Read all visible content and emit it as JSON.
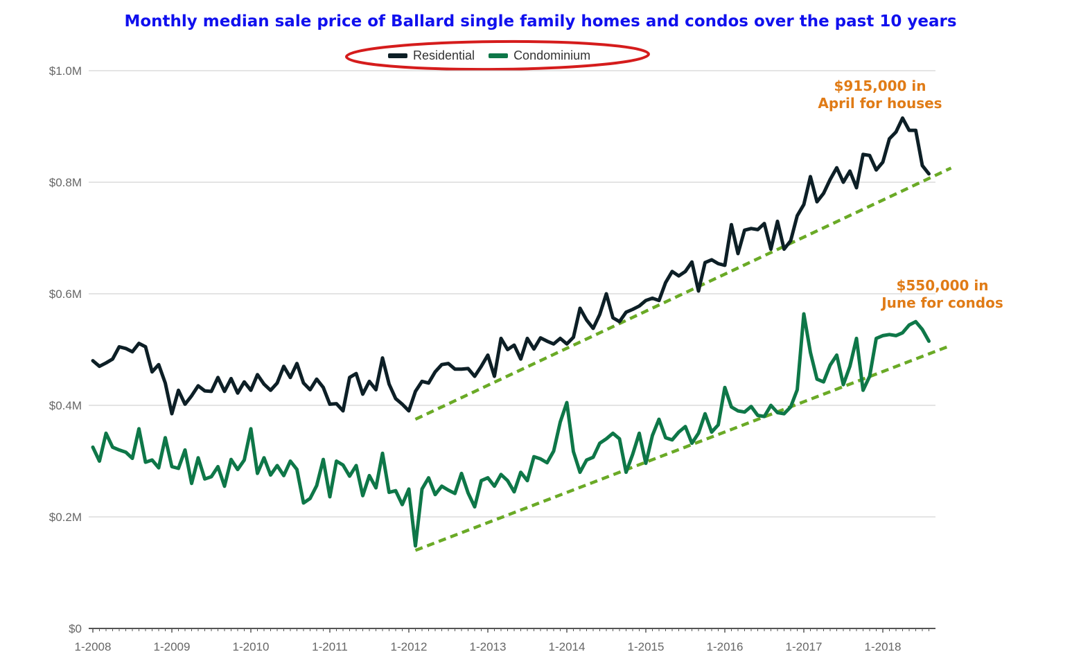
{
  "title": "Monthly median sale price of Ballard single family homes and condos over the past 10 years",
  "legend": {
    "items": [
      {
        "label": "Residential",
        "color": "#0d1f26"
      },
      {
        "label": "Condominium",
        "color": "#0e7748"
      }
    ],
    "highlight_color": "#d51c1c"
  },
  "annotations": {
    "houses": {
      "line1": "$915,000 in",
      "line2": "April for houses",
      "color": "#e07b16"
    },
    "condos": {
      "line1": "$550,000 in",
      "line2": "June for condos",
      "color": "#e07b16"
    }
  },
  "chart_data": {
    "type": "line",
    "title": "Monthly median sale price of Ballard single family homes and condos over the past 10 years",
    "x_start": "1-2008",
    "x_interval": "month",
    "xlabel": "",
    "ylabel": "",
    "x_ticks": [
      "1-2008",
      "1-2009",
      "1-2010",
      "1-2011",
      "1-2012",
      "1-2013",
      "1-2014",
      "1-2015",
      "1-2016",
      "1-2017",
      "1-2018"
    ],
    "y_ticks": [
      "$0",
      "$0.2M",
      "$0.4M",
      "$0.6M",
      "$0.8M",
      "$1.0M"
    ],
    "ylim": [
      0,
      1000000
    ],
    "grid": true,
    "legend_position": "top-center",
    "series": [
      {
        "name": "Residential",
        "color": "#0d1f26",
        "values": [
          480000,
          470000,
          476000,
          483000,
          505000,
          502000,
          496000,
          511000,
          505000,
          460000,
          473000,
          440000,
          385000,
          427000,
          402000,
          417000,
          435000,
          426000,
          425000,
          450000,
          425000,
          448000,
          422000,
          442000,
          427000,
          455000,
          438000,
          427000,
          440000,
          470000,
          450000,
          475000,
          440000,
          428000,
          447000,
          432000,
          402000,
          403000,
          390000,
          450000,
          457000,
          420000,
          443000,
          428000,
          485000,
          438000,
          412000,
          402000,
          390000,
          425000,
          443000,
          440000,
          460000,
          473000,
          475000,
          465000,
          465000,
          466000,
          452000,
          470000,
          490000,
          452000,
          520000,
          500000,
          508000,
          483000,
          520000,
          501000,
          521000,
          515000,
          510000,
          520000,
          510000,
          522000,
          574000,
          553000,
          538000,
          563000,
          600000,
          557000,
          550000,
          567000,
          572000,
          578000,
          588000,
          592000,
          588000,
          620000,
          640000,
          632000,
          640000,
          657000,
          605000,
          656000,
          661000,
          654000,
          651000,
          724000,
          672000,
          714000,
          717000,
          715000,
          726000,
          680000,
          730000,
          680000,
          695000,
          740000,
          760000,
          810000,
          765000,
          780000,
          805000,
          826000,
          800000,
          820000,
          790000,
          850000,
          848000,
          822000,
          836000,
          878000,
          890000,
          915000,
          893000,
          893000,
          830000,
          815000
        ]
      },
      {
        "name": "Condominium",
        "color": "#0e7748",
        "values": [
          325000,
          300000,
          350000,
          325000,
          320000,
          316000,
          305000,
          358000,
          298000,
          302000,
          288000,
          342000,
          290000,
          287000,
          320000,
          260000,
          306000,
          268000,
          272000,
          290000,
          255000,
          303000,
          285000,
          302000,
          358000,
          278000,
          306000,
          275000,
          292000,
          274000,
          300000,
          285000,
          225000,
          233000,
          256000,
          303000,
          236000,
          300000,
          293000,
          273000,
          292000,
          238000,
          274000,
          252000,
          314000,
          244000,
          247000,
          222000,
          250000,
          148000,
          250000,
          270000,
          240000,
          255000,
          248000,
          242000,
          278000,
          243000,
          218000,
          265000,
          270000,
          255000,
          276000,
          265000,
          245000,
          280000,
          265000,
          308000,
          304000,
          297000,
          318000,
          370000,
          405000,
          317000,
          280000,
          302000,
          307000,
          332000,
          340000,
          350000,
          340000,
          280000,
          312000,
          350000,
          296000,
          346000,
          375000,
          342000,
          338000,
          352000,
          362000,
          332000,
          350000,
          385000,
          352000,
          365000,
          432000,
          397000,
          390000,
          388000,
          398000,
          382000,
          380000,
          400000,
          387000,
          385000,
          397000,
          428000,
          564000,
          495000,
          447000,
          442000,
          472000,
          490000,
          437000,
          470000,
          520000,
          427000,
          452000,
          520000,
          525000,
          527000,
          525000,
          530000,
          544000,
          550000,
          536000,
          515000
        ]
      }
    ],
    "trendlines": [
      {
        "for": "Residential",
        "from": {
          "x": "2-2012",
          "y": 375000
        },
        "to": {
          "x": "8-2018",
          "y": 818000
        },
        "color": "#6aaa26",
        "style": "dashed"
      },
      {
        "for": "Condominium",
        "from": {
          "x": "2-2012",
          "y": 140000
        },
        "to": {
          "x": "8-2018",
          "y": 500000
        },
        "color": "#6aaa26",
        "style": "dashed"
      }
    ]
  }
}
